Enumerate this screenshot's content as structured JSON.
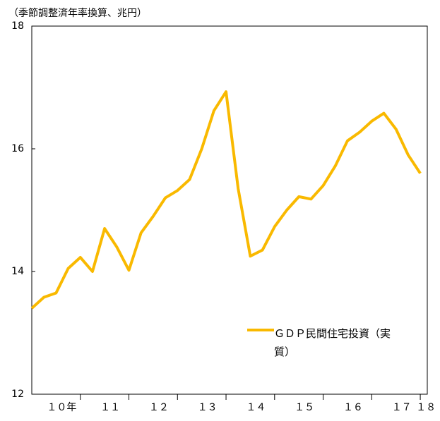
{
  "chart_data": {
    "type": "line",
    "y_axis_label": "（季節調整済年率換算、兆円）",
    "categories": [
      null,
      null,
      "１０年",
      null,
      null,
      null,
      "１１",
      null,
      null,
      null,
      "１２",
      null,
      null,
      null,
      "１３",
      null,
      null,
      null,
      "１４",
      null,
      null,
      null,
      "１５",
      null,
      null,
      null,
      "１６",
      null,
      null,
      null,
      "１７",
      null,
      "１８"
    ],
    "series": [
      {
        "name": "ＧＤＰ民間住宅投資（実質）",
        "color": "#f9b900",
        "values": [
          13.4,
          13.58,
          13.65,
          14.05,
          14.23,
          14.0,
          14.7,
          14.4,
          14.02,
          14.63,
          14.9,
          15.2,
          15.32,
          15.5,
          16.0,
          16.62,
          16.93,
          15.35,
          14.25,
          14.35,
          14.73,
          15.0,
          15.22,
          15.18,
          15.4,
          15.72,
          16.13,
          16.27,
          16.45,
          16.58,
          16.32,
          15.9,
          15.6
        ]
      }
    ],
    "ylim": [
      12,
      18
    ],
    "yticks": [
      12,
      14,
      16,
      18
    ],
    "grid": false
  }
}
